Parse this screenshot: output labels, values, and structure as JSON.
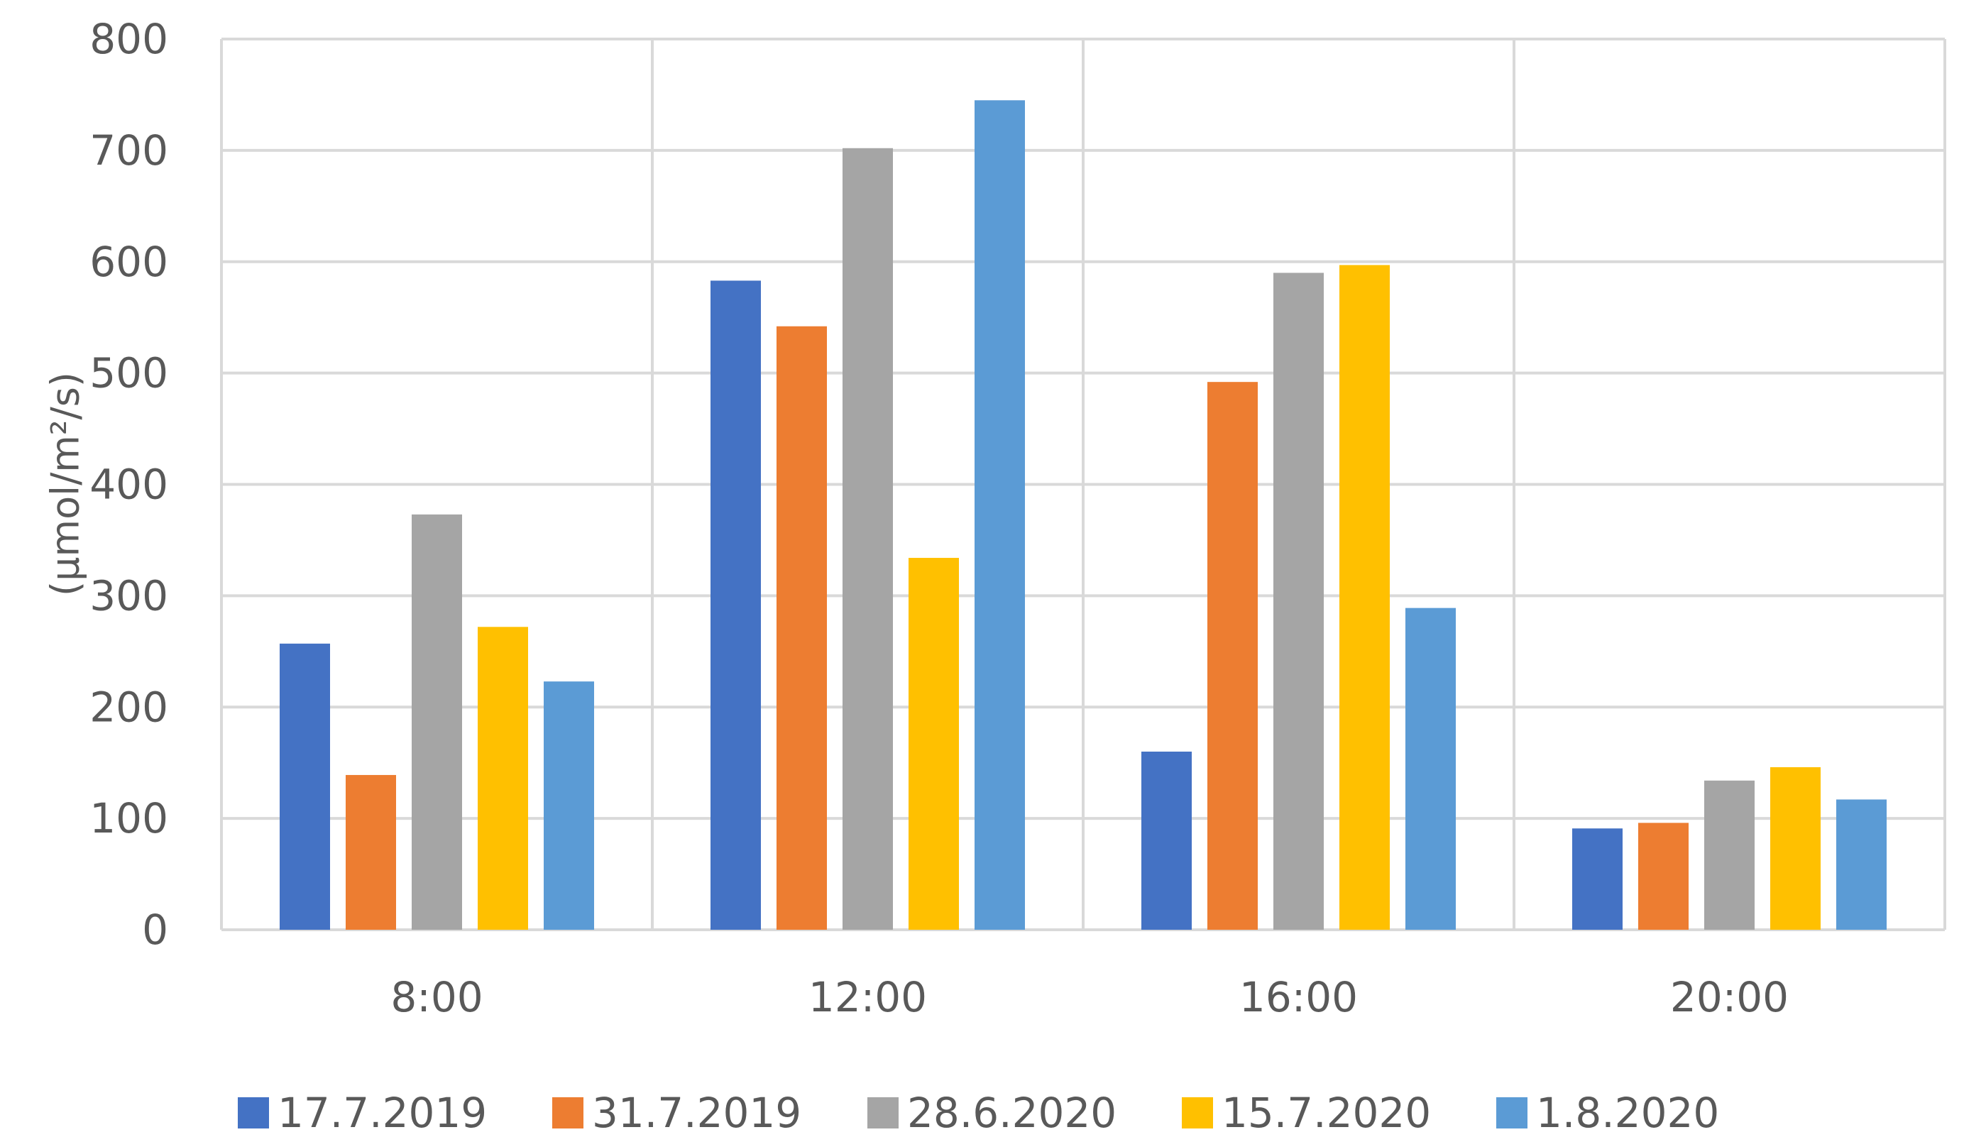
{
  "chart_data": {
    "type": "bar",
    "title": "",
    "xlabel": "",
    "ylabel": "(µmol/m²/s)",
    "ylim": [
      0,
      800
    ],
    "yticks": [
      0,
      100,
      200,
      300,
      400,
      500,
      600,
      700,
      800
    ],
    "categories": [
      "8:00",
      "12:00",
      "16:00",
      "20:00"
    ],
    "grid": true,
    "legend_position": "bottom",
    "series": [
      {
        "name": "17.7.2019",
        "color": "#4472C4",
        "values": [
          257,
          583,
          160,
          91
        ]
      },
      {
        "name": "31.7.2019",
        "color": "#ED7D31",
        "values": [
          139,
          542,
          492,
          96
        ]
      },
      {
        "name": "28.6.2020",
        "color": "#A5A5A5",
        "values": [
          373,
          702,
          590,
          134
        ]
      },
      {
        "name": "15.7.2020",
        "color": "#FFC000",
        "values": [
          272,
          334,
          597,
          146
        ]
      },
      {
        "name": "1.8.2020",
        "color": "#5B9BD5",
        "values": [
          223,
          745,
          289,
          117
        ]
      }
    ]
  }
}
